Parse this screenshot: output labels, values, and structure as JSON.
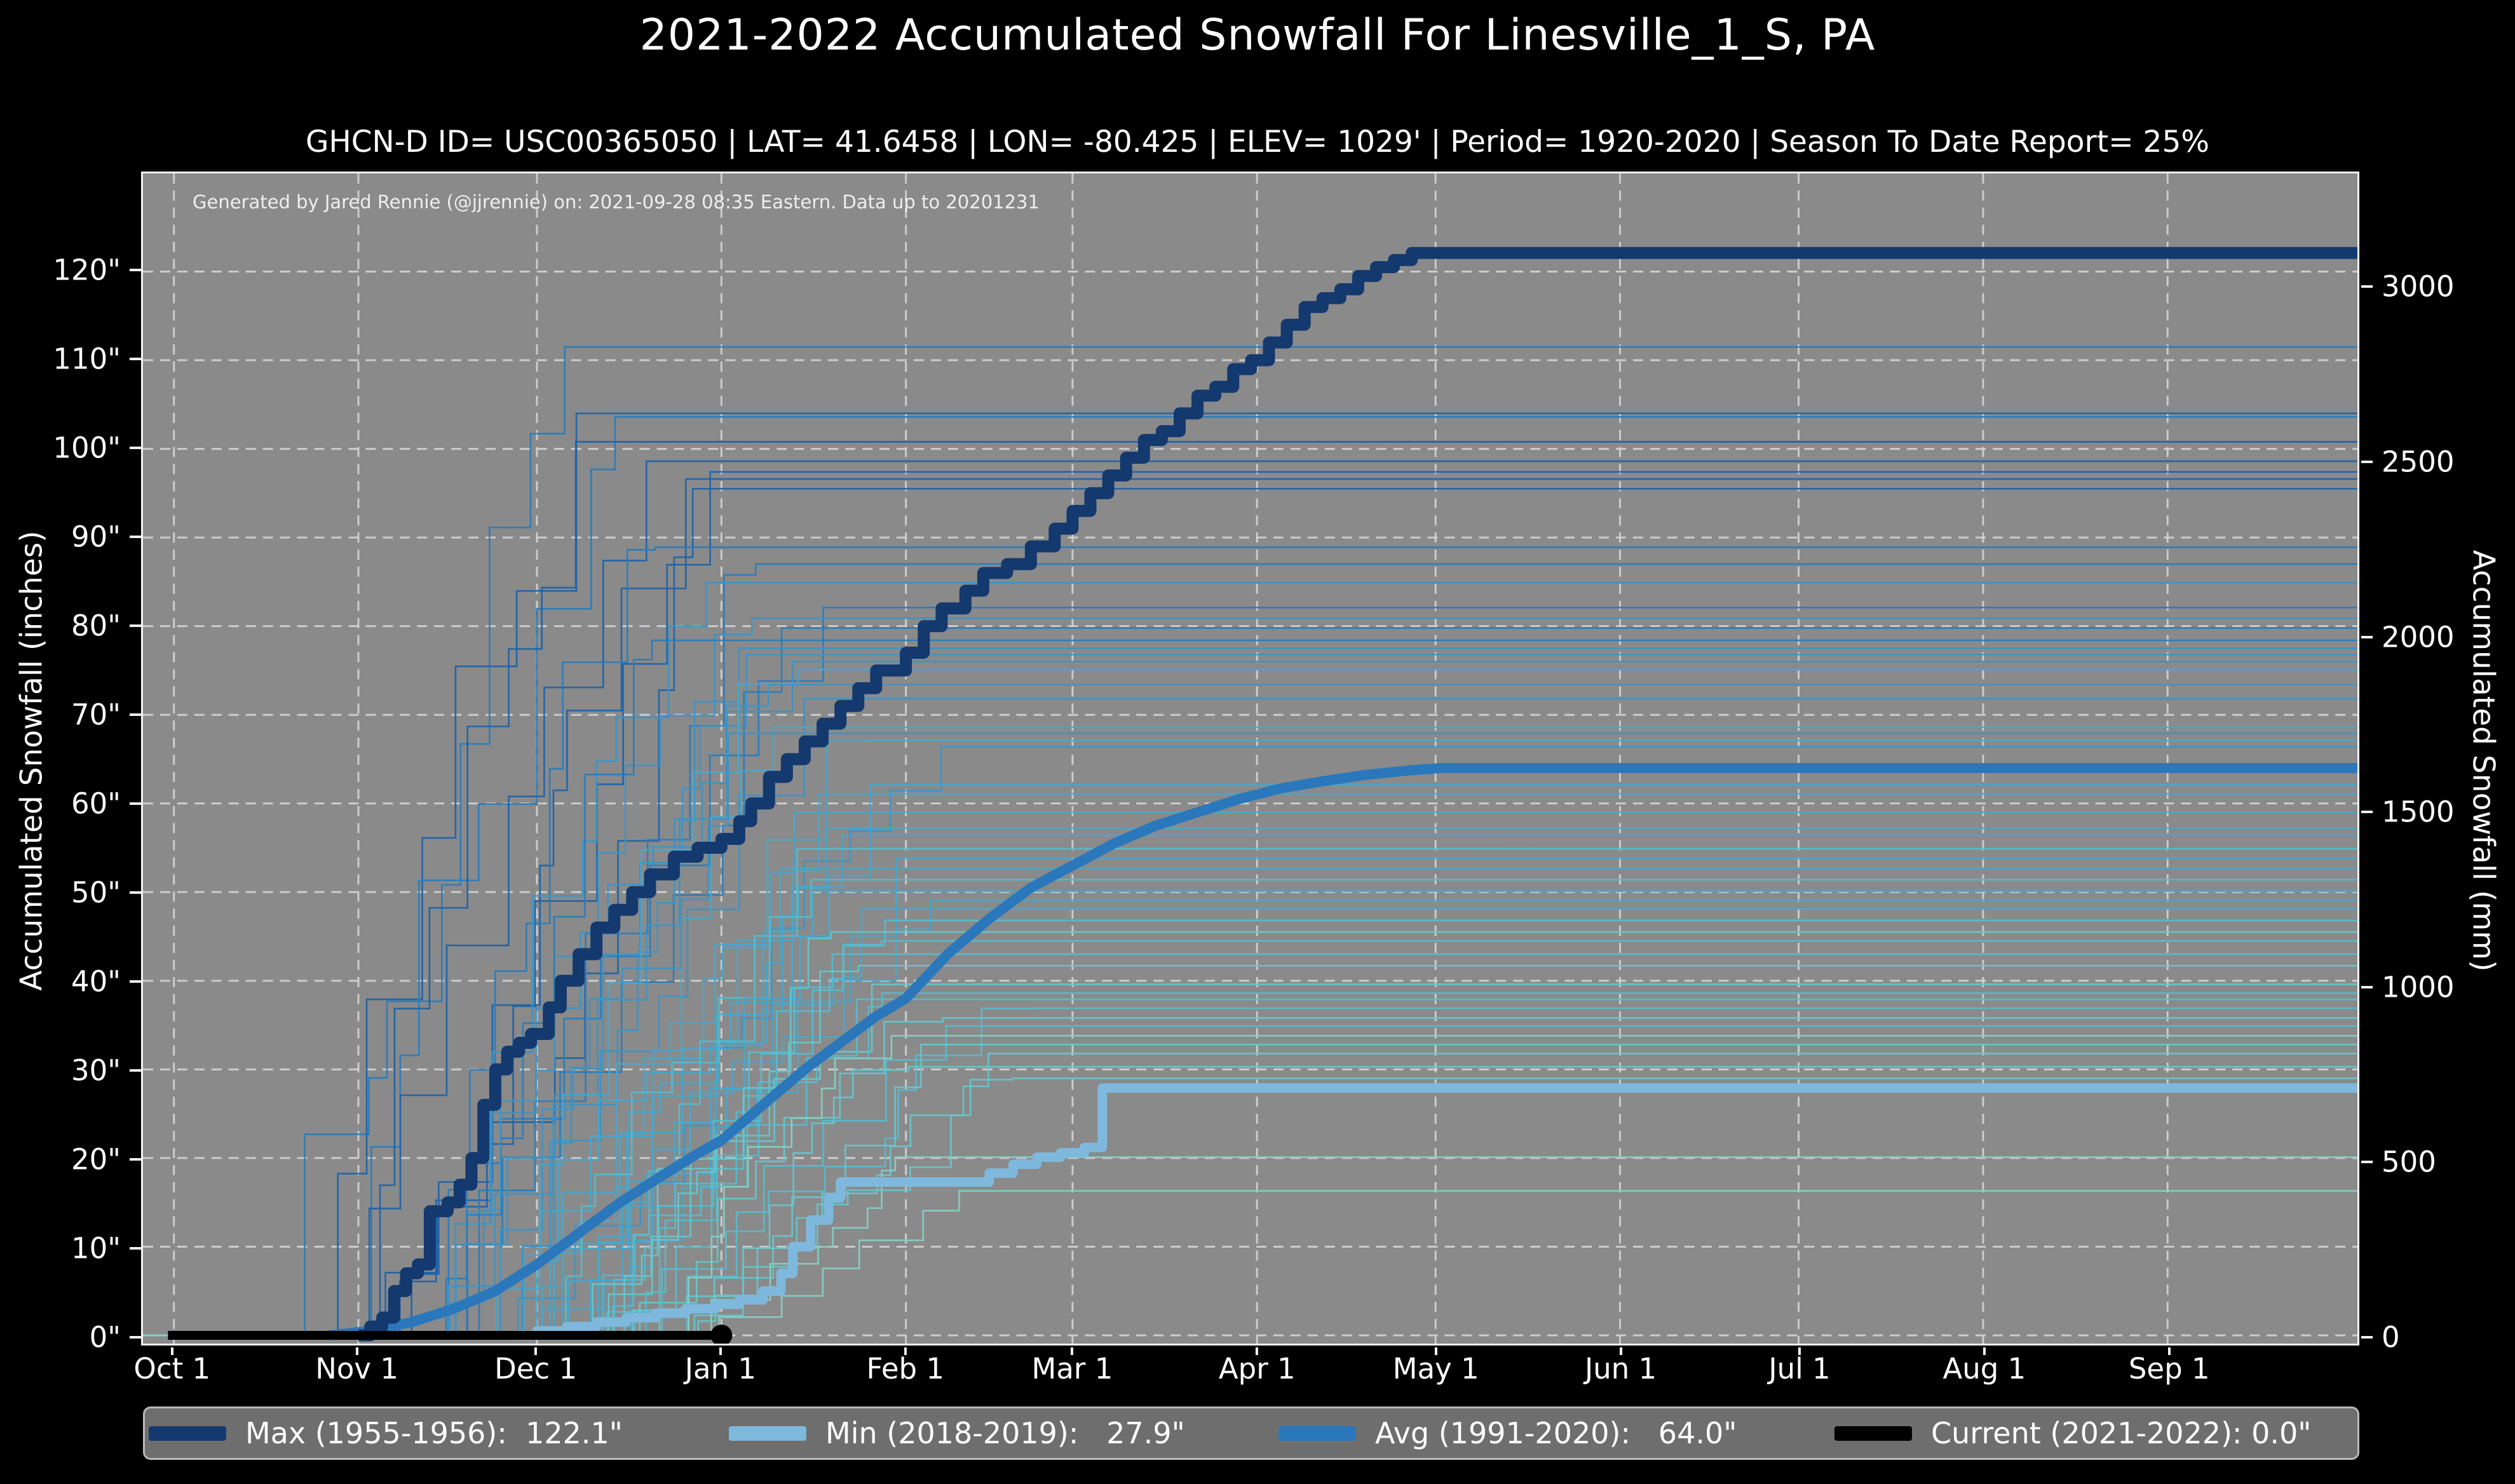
{
  "title": "2021-2022 Accumulated Snowfall For Linesville_1_S, PA",
  "subtitle": "GHCN-D ID= USC00365050 | LAT= 41.6458 | LON= -80.425 | ELEV= 1029' | Period= 1920-2020 | Season To Date Report= 25%",
  "attribution": "Generated by Jared Rennie (@jjrennie) on: 2021-09-28 08:35 Eastern. Data up to 20201231",
  "colors": {
    "page_bg": "#000000",
    "plot_bg": "#8a8a8a",
    "grid": "#d8d8d8",
    "spine": "#f2f2f2",
    "text": "#ffffff",
    "legend_bg": "#6e6e6e",
    "legend_border": "#b9b9b9",
    "max": "#14396e",
    "min": "#7fb8dd",
    "avg": "#2a78bb",
    "current": "#000000",
    "season_palette": [
      "#1e63a9",
      "#2a7cbb",
      "#3c94c6",
      "#47a8cc",
      "#55bccf",
      "#66c6cb",
      "#86d0c3"
    ]
  },
  "chart_data": {
    "type": "line",
    "title": "2021-2022 Accumulated Snowfall For Linesville_1_S, PA",
    "station": "Linesville_1_S, PA",
    "ghcnd_id": "USC00365050",
    "lat": 41.6458,
    "lon": -80.425,
    "elev_ft_label": "1029'",
    "period": "1920-2020",
    "season_to_date_report": "25%",
    "xlabel": "",
    "ylabel_left": "Accumulated Snowfall (inches)",
    "ylabel_right": "Accumulated Snowfall (mm)",
    "x_tick_labels": [
      "Oct 1",
      "Nov 1",
      "Dec 1",
      "Jan 1",
      "Feb 1",
      "Mar 1",
      "Apr 1",
      "May 1",
      "Jun 1",
      "Jul 1",
      "Aug 1",
      "Sep 1"
    ],
    "x_tick_days": [
      0,
      31,
      61,
      92,
      123,
      151,
      182,
      212,
      243,
      273,
      304,
      335
    ],
    "x_range_days": [
      -5.2,
      366.9
    ],
    "y_left_ticks_inches": [
      0,
      10,
      20,
      30,
      40,
      50,
      60,
      70,
      80,
      90,
      100,
      110,
      120
    ],
    "y_left_tick_labels": [
      "0\"",
      "10\"",
      "20\"",
      "30\"",
      "40\"",
      "50\"",
      "60\"",
      "70\"",
      "80\"",
      "90\"",
      "100\"",
      "110\"",
      "120\""
    ],
    "y_right_ticks_mm": [
      0,
      500,
      1000,
      1500,
      2000,
      2500,
      3000
    ],
    "y_range_inches": [
      -0.93,
      131.07
    ],
    "grid": true,
    "grid_style": "dashed",
    "legend_position": "bottom",
    "series": [
      {
        "key": "max",
        "name": "Max (1955-1956)",
        "final_inches": 122.1,
        "style": "step",
        "points": [
          [
            31,
            0
          ],
          [
            33,
            1
          ],
          [
            35,
            2
          ],
          [
            37,
            5
          ],
          [
            39,
            7
          ],
          [
            41,
            8
          ],
          [
            43,
            14
          ],
          [
            46,
            15
          ],
          [
            48,
            17
          ],
          [
            50,
            20
          ],
          [
            52,
            26
          ],
          [
            54,
            30
          ],
          [
            56,
            32
          ],
          [
            58,
            33
          ],
          [
            60,
            34
          ],
          [
            63,
            37
          ],
          [
            65,
            40
          ],
          [
            68,
            43
          ],
          [
            71,
            46
          ],
          [
            74,
            48
          ],
          [
            77,
            50
          ],
          [
            80,
            52
          ],
          [
            84,
            54
          ],
          [
            88,
            55
          ],
          [
            92,
            56
          ],
          [
            95,
            58
          ],
          [
            97,
            60
          ],
          [
            100,
            63
          ],
          [
            103,
            65
          ],
          [
            106,
            67
          ],
          [
            109,
            69
          ],
          [
            112,
            71
          ],
          [
            115,
            73
          ],
          [
            118,
            75
          ],
          [
            123,
            77
          ],
          [
            126,
            80
          ],
          [
            129,
            82
          ],
          [
            133,
            84
          ],
          [
            136,
            86
          ],
          [
            140,
            87
          ],
          [
            144,
            89
          ],
          [
            148,
            91
          ],
          [
            151,
            93
          ],
          [
            154,
            95
          ],
          [
            157,
            97
          ],
          [
            160,
            99
          ],
          [
            163,
            101
          ],
          [
            166,
            102
          ],
          [
            169,
            104
          ],
          [
            172,
            106
          ],
          [
            175,
            107
          ],
          [
            178,
            109
          ],
          [
            181,
            110
          ],
          [
            184,
            112
          ],
          [
            187,
            114
          ],
          [
            190,
            116
          ],
          [
            193,
            117
          ],
          [
            196,
            118
          ],
          [
            199,
            119.5
          ],
          [
            202,
            120.5
          ],
          [
            205,
            121.3
          ],
          [
            208,
            122.1
          ],
          [
            367,
            122.1
          ]
        ]
      },
      {
        "key": "min",
        "name": "Min (2018-2019)",
        "final_inches": 27.9,
        "style": "step",
        "points": [
          [
            57,
            0
          ],
          [
            61,
            0.5
          ],
          [
            66,
            1
          ],
          [
            71,
            1.5
          ],
          [
            76,
            2
          ],
          [
            81,
            2.5
          ],
          [
            86,
            3
          ],
          [
            91,
            3.5
          ],
          [
            95,
            4
          ],
          [
            99,
            5
          ],
          [
            102,
            7
          ],
          [
            104,
            10
          ],
          [
            107,
            13
          ],
          [
            110,
            15.5
          ],
          [
            112,
            17.3
          ],
          [
            134,
            17.3
          ],
          [
            137,
            18.3
          ],
          [
            141,
            19.3
          ],
          [
            145,
            20.1
          ],
          [
            149,
            20.6
          ],
          [
            153,
            21.2
          ],
          [
            156,
            27.9
          ],
          [
            367,
            27.9
          ]
        ]
      },
      {
        "key": "avg",
        "name": "Avg (1991-2020)",
        "final_inches": 64.0,
        "style": "linear",
        "points": [
          [
            26,
            0
          ],
          [
            33,
            0.5
          ],
          [
            40,
            1.5
          ],
          [
            47,
            3
          ],
          [
            54,
            5
          ],
          [
            61,
            8
          ],
          [
            68,
            11.5
          ],
          [
            75,
            15
          ],
          [
            82,
            18
          ],
          [
            88,
            20.5
          ],
          [
            92,
            22
          ],
          [
            99,
            26
          ],
          [
            106,
            30
          ],
          [
            113,
            33.5
          ],
          [
            118,
            36
          ],
          [
            123,
            38
          ],
          [
            130,
            43
          ],
          [
            137,
            47
          ],
          [
            144,
            50.5
          ],
          [
            151,
            53
          ],
          [
            158,
            55.5
          ],
          [
            165,
            57.5
          ],
          [
            172,
            59
          ],
          [
            179,
            60.5
          ],
          [
            186,
            61.7
          ],
          [
            193,
            62.5
          ],
          [
            200,
            63.2
          ],
          [
            207,
            63.7
          ],
          [
            213,
            64
          ],
          [
            367,
            64
          ]
        ]
      },
      {
        "key": "current",
        "name": "Current (2021-2022)",
        "final_inches": 0.0,
        "style": "step",
        "end_marker": true,
        "points": [
          [
            -1,
            0
          ],
          [
            92,
            0
          ]
        ]
      }
    ],
    "background_seasons": {
      "note": "Thin lines: individual seasons 1920-2020; season-end totals (inches) estimated from the plot's right edge",
      "final_totals_inches": [
        111.5,
        104.0,
        103.6,
        100.8,
        98.6,
        97.4,
        96.6,
        95.5,
        88.9,
        87.0,
        84.9,
        82.1,
        80.9,
        79.8,
        78.4,
        77.5,
        76.8,
        76.0,
        75.1,
        73.4,
        71.8,
        68.6,
        67.9,
        67.1,
        66.4,
        62.1,
        61.1,
        59.0,
        57.2,
        56.4,
        54.9,
        53.8,
        52.7,
        51.4,
        50.1,
        49.1,
        48.1,
        46.8,
        45.5,
        44.5,
        43.0,
        41.7,
        39.6,
        38.6,
        37.9,
        36.9,
        35.8,
        34.9,
        33.8,
        32.8,
        31.8,
        30.3,
        29.0,
        20.1,
        16.3
      ]
    },
    "legend_items": [
      {
        "series": "max",
        "label": "Max (1955-1956):  122.1\""
      },
      {
        "series": "min",
        "label": "Min (2018-2019):   27.9\""
      },
      {
        "series": "avg",
        "label": "Avg (1991-2020):   64.0\""
      },
      {
        "series": "current",
        "label": "Current (2021-2022): 0.0\""
      }
    ]
  }
}
